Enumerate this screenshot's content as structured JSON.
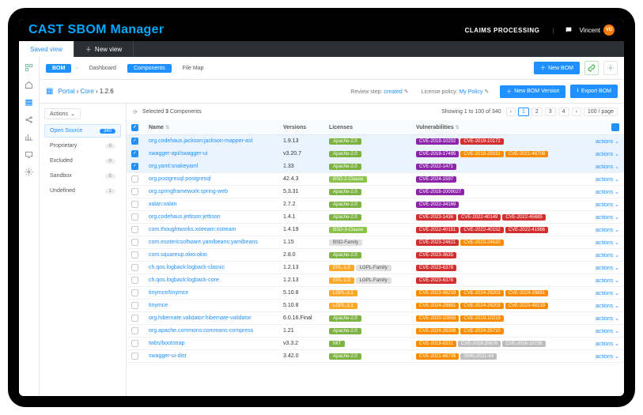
{
  "header": {
    "brand": "CAST SBOM Manager",
    "claims": "CLAIMS PROCESSING",
    "user": "Vincent",
    "avatar_initials": "VD"
  },
  "viewtabs": {
    "saved": "Saved view",
    "new": "New view"
  },
  "bomtabs": {
    "bom": "BOM",
    "dashboard": "Dashboard",
    "components": "Components",
    "filemap": "File Map",
    "new_bom": "New BOM"
  },
  "breadcrumb": {
    "portal": "Portal",
    "core": "Core",
    "version": "1.2.6",
    "review_step_label": "Review step:",
    "review_step_value": "created",
    "license_policy_label": "License policy:",
    "license_policy_value": "My Policy",
    "new_version_btn": "New BOM Version",
    "export_btn": "Export BOM"
  },
  "sidebar": {
    "actions": "Actions",
    "items": [
      {
        "label": "Open Source",
        "count": "340",
        "active": true
      },
      {
        "label": "Proprietary",
        "count": "0"
      },
      {
        "label": "Excluded",
        "count": "0"
      },
      {
        "label": "Sandbox",
        "count": "0"
      },
      {
        "label": "Undefined",
        "count": "1"
      }
    ]
  },
  "table": {
    "selected_text": "Selected 3 Components",
    "showing": "Showing 1 to 100 of 340",
    "per_page": "100 / page",
    "headers": {
      "name": "Name",
      "versions": "Versions",
      "licenses": "Licenses",
      "vulns": "Vulnerabilities"
    },
    "actions_label": "actions",
    "license_colors": {
      "Apache-2.0": "#7cb342",
      "BSD-2-Clause": "#8bc34a",
      "BSD-3-Clause": "#8bc34a",
      "BSD-Family": "#e0e0e0",
      "EPL-1.0": "#ffa726",
      "LGPL-Family": "#e0e0e0",
      "LGPL-3.1": "#ffa726",
      "MIT": "#7cb342"
    },
    "license_text_colors": {
      "BSD-Family": "#555",
      "LGPL-Family": "#555"
    },
    "vuln_colors": {
      "critical": "#d32f2f",
      "high": "#f4511e",
      "medium": "#fb8c00",
      "purple": "#8e24aa",
      "grey": "#bdbdbd"
    },
    "rows": [
      {
        "sel": true,
        "name": "org.codehaus.jackson:jackson-mapper-asl",
        "ver": "1.9.13",
        "lic": [
          "Apache-2.0"
        ],
        "vulns": [
          {
            "t": "CVE-2019-10202",
            "c": "purple"
          },
          {
            "t": "CVE-2019-10172",
            "c": "critical"
          }
        ]
      },
      {
        "sel": true,
        "name": "swagger-api/swagger-ui",
        "ver": "v3.20.7",
        "lic": [
          "Apache-2.0"
        ],
        "vulns": [
          {
            "t": "CVE-2019-17495",
            "c": "purple"
          },
          {
            "t": "CVE-2018-25031",
            "c": "medium"
          },
          {
            "t": "CVE-2021-46708",
            "c": "medium"
          }
        ]
      },
      {
        "sel": true,
        "name": "org.yaml:snakeyaml",
        "ver": "1.33",
        "lic": [
          "Apache-2.0"
        ],
        "vulns": [
          {
            "t": "CVE-2022-1471",
            "c": "purple"
          }
        ]
      },
      {
        "sel": false,
        "name": "org.postgresql:postgresql",
        "ver": "42.4.3",
        "lic": [
          "BSD-2-Clause"
        ],
        "vulns": [
          {
            "t": "CVE-2024-1597",
            "c": "purple"
          }
        ]
      },
      {
        "sel": false,
        "name": "org.springframework:spring-web",
        "ver": "5.3.31",
        "lic": [
          "Apache-2.0"
        ],
        "vulns": [
          {
            "t": "CVE-2016-1000027",
            "c": "purple"
          }
        ]
      },
      {
        "sel": false,
        "name": "xalan:xalan",
        "ver": "2.7.2",
        "lic": [
          "Apache-2.0"
        ],
        "vulns": [
          {
            "t": "CVE-2022-34169",
            "c": "purple"
          }
        ]
      },
      {
        "sel": false,
        "name": "org.codehaus.jettison:jettison",
        "ver": "1.4.1",
        "lic": [
          "Apache-2.0"
        ],
        "vulns": [
          {
            "t": "CVE-2023-1436",
            "c": "critical"
          },
          {
            "t": "CVE-2022-40149",
            "c": "critical"
          },
          {
            "t": "CVE-2022-45685",
            "c": "critical"
          }
        ]
      },
      {
        "sel": false,
        "name": "com.thoughtworks.xstream:xstream",
        "ver": "1.4.19",
        "lic": [
          "BSD-3-Clause"
        ],
        "vulns": [
          {
            "t": "CVE-2022-40151",
            "c": "critical"
          },
          {
            "t": "CVE-2022-40152",
            "c": "critical"
          },
          {
            "t": "CVE-2022-41966",
            "c": "critical"
          }
        ]
      },
      {
        "sel": false,
        "name": "com.esotericsoftware.yamlbeans:yamlbeans",
        "ver": "1.15",
        "lic": [
          "BSD-Family"
        ],
        "vulns": [
          {
            "t": "CVE-2023-24621",
            "c": "critical"
          },
          {
            "t": "CVE-2023-24620",
            "c": "medium"
          }
        ]
      },
      {
        "sel": false,
        "name": "com.squareup.okio:okio",
        "ver": "2.8.0",
        "lic": [
          "Apache-2.0"
        ],
        "vulns": [
          {
            "t": "CVE-2023-3635",
            "c": "critical"
          }
        ]
      },
      {
        "sel": false,
        "name": "ch.qos.logback:logback-classic",
        "ver": "1.2.13",
        "lic": [
          "EPL-1.0",
          "LGPL-Family"
        ],
        "vulns": [
          {
            "t": "CVE-2023-6378",
            "c": "critical"
          }
        ]
      },
      {
        "sel": false,
        "name": "ch.qos.logback:logback-core",
        "ver": "1.2.13",
        "lic": [
          "EPL-1.0",
          "LGPL-Family"
        ],
        "vulns": [
          {
            "t": "CVE-2023-6378",
            "c": "critical"
          }
        ]
      },
      {
        "sel": false,
        "name": "tinymce/tinymce",
        "ver": "5.10.8",
        "lic": [
          "LGPL-3.1"
        ],
        "vulns": [
          {
            "t": "CVE-2023-48219",
            "c": "medium"
          },
          {
            "t": "CVE-2024-29203",
            "c": "medium"
          },
          {
            "t": "CVE-2024-29881",
            "c": "medium"
          }
        ]
      },
      {
        "sel": false,
        "name": "tinymce",
        "ver": "5.10.8",
        "lic": [
          "LGPL-3.1"
        ],
        "vulns": [
          {
            "t": "CVE-2024-29881",
            "c": "medium"
          },
          {
            "t": "CVE-2024-29203",
            "c": "medium"
          },
          {
            "t": "CVE-2023-48219",
            "c": "medium"
          }
        ]
      },
      {
        "sel": false,
        "name": "org.hibernate.validator:hibernate-validator",
        "ver": "6.0.16.Final",
        "lic": [
          "Apache-2.0"
        ],
        "vulns": [
          {
            "t": "CVE-2020-10693",
            "c": "medium"
          },
          {
            "t": "CVE-2019-10219",
            "c": "medium"
          }
        ]
      },
      {
        "sel": false,
        "name": "org.apache.commons:commons-compress",
        "ver": "1.21",
        "lic": [
          "Apache-2.0"
        ],
        "vulns": [
          {
            "t": "CVE-2024-26308",
            "c": "medium"
          },
          {
            "t": "CVE-2024-25710",
            "c": "medium"
          }
        ]
      },
      {
        "sel": false,
        "name": "twbs/bootstrap",
        "ver": "v3.3.2",
        "lic": [
          "MIT"
        ],
        "vulns": [
          {
            "t": "CVE-2019-8331",
            "c": "medium"
          },
          {
            "t": "CVE-2018-20676",
            "c": "grey"
          },
          {
            "t": "CVE-2016-10735",
            "c": "grey"
          }
        ]
      },
      {
        "sel": false,
        "name": "swagger-ui-dist",
        "ver": "3.42.0",
        "lic": [
          "Apache-2.0"
        ],
        "vulns": [
          {
            "t": "CVE-2021-46708",
            "c": "medium"
          },
          {
            "t": "GMS-2021-44",
            "c": "grey"
          }
        ]
      }
    ]
  }
}
